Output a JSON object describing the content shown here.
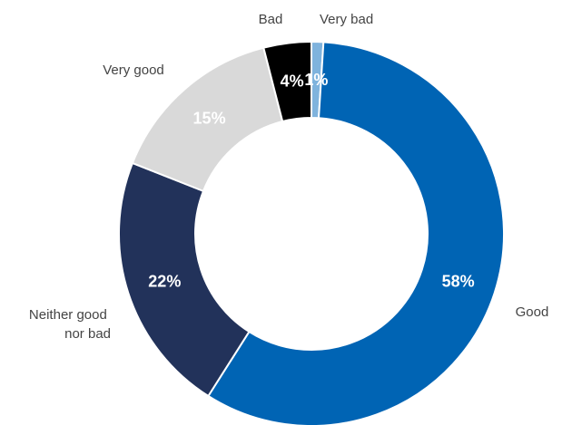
{
  "chart_data": {
    "type": "pie",
    "title": "",
    "categories": [
      "Very bad",
      "Good",
      "Neither good nor bad",
      "Very good",
      "Bad"
    ],
    "values": [
      1,
      58,
      22,
      15,
      4
    ],
    "value_labels": [
      "1%",
      "58%",
      "22%",
      "15%",
      "4%"
    ],
    "colors": [
      "#7fb3dd",
      "#0064b4",
      "#22325a",
      "#d9d9d9",
      "#000000"
    ],
    "label_colors": [
      "#ffffff",
      "#ffffff",
      "#ffffff",
      "#ffffff",
      "#ffffff"
    ],
    "donut": true,
    "legend": "none"
  }
}
